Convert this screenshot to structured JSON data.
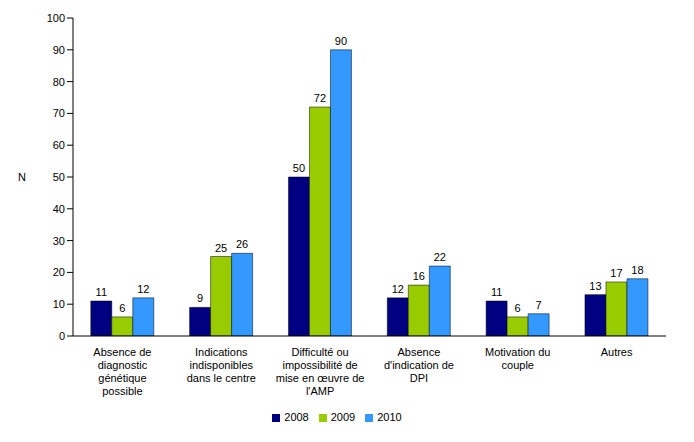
{
  "chart_data": {
    "type": "bar",
    "categories": [
      "Absence de diagnostic génétique possible",
      "Indications indisponibles dans le centre",
      "Difficulté ou impossibilité de mise en œuvre de l'AMP",
      "Absence d'indication de DPI",
      "Motivation du couple",
      "Autres"
    ],
    "series": [
      {
        "name": "2008",
        "color": "#000080",
        "values": [
          11,
          9,
          50,
          12,
          11,
          13
        ]
      },
      {
        "name": "2009",
        "color": "#99CC00",
        "values": [
          6,
          25,
          72,
          16,
          6,
          17
        ]
      },
      {
        "name": "2010",
        "color": "#3399FF",
        "values": [
          12,
          26,
          90,
          22,
          7,
          18
        ]
      }
    ],
    "y_label": "N",
    "ylim": [
      0,
      100
    ],
    "yticks": [
      0,
      10,
      20,
      30,
      40,
      50,
      60,
      70,
      80,
      90,
      100
    ],
    "grid": false,
    "legend": "bottom",
    "data_labels": true
  }
}
